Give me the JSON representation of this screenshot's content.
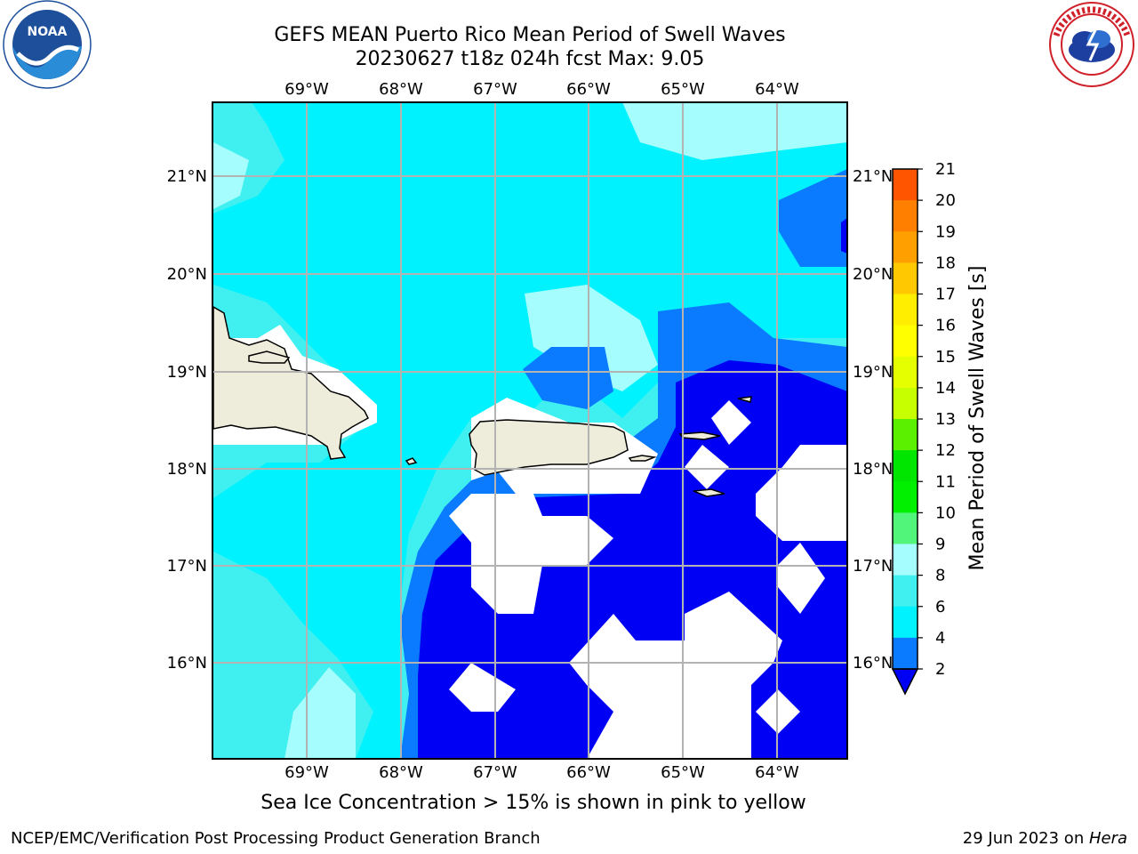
{
  "header": {
    "title_line1": "GEFS MEAN Puerto Rico Mean Period of Swell Waves",
    "title_line2": "20230627 t18z 024h fcst   Max: 9.05"
  },
  "map": {
    "lon_labels": [
      "69°W",
      "68°W",
      "67°W",
      "66°W",
      "65°W",
      "64°W"
    ],
    "lat_labels": [
      "21°N",
      "20°N",
      "19°N",
      "18°N",
      "17°N",
      "16°N"
    ],
    "colors": {
      "land": "#eeecda",
      "coast": "#000000",
      "grid": "#b3b3b3",
      "band_2_4": "#0000f5",
      "band_4_6": "#0a7bff",
      "band_6_8": "#00f2ff",
      "band_8_9": "#40f0f0",
      "band_9_10": "#a6fdfd",
      "nodata": "#ffffff"
    }
  },
  "colorbar": {
    "label": "Mean Period of Swell Waves [s]",
    "ticks": [
      "21",
      "20",
      "19",
      "18",
      "17",
      "16",
      "15",
      "14",
      "13",
      "12",
      "11",
      "10",
      "9",
      "8",
      "6",
      "4",
      "2"
    ],
    "colors": [
      "#ff0000",
      "#ff2a00",
      "#ff5500",
      "#ff8000",
      "#ffa000",
      "#ffc800",
      "#ffee00",
      "#ffff00",
      "#e6ff00",
      "#c8ff00",
      "#5af000",
      "#00e600",
      "#00f000",
      "#50f57a",
      "#a6fdfd",
      "#40f0f0",
      "#00f2ff",
      "#0a7bff",
      "#0000f5"
    ]
  },
  "footer": {
    "note": "Sea Ice Concentration > 15% is shown in pink to yellow",
    "left": "NCEP/EMC/Verification Post Processing Product Generation Branch",
    "right_date": "29 Jun 2023 on ",
    "right_host": "Hera"
  },
  "logos": {
    "noaa_text": "NOAA",
    "nws_text": "NATIONAL WEATHER SERVICE"
  }
}
